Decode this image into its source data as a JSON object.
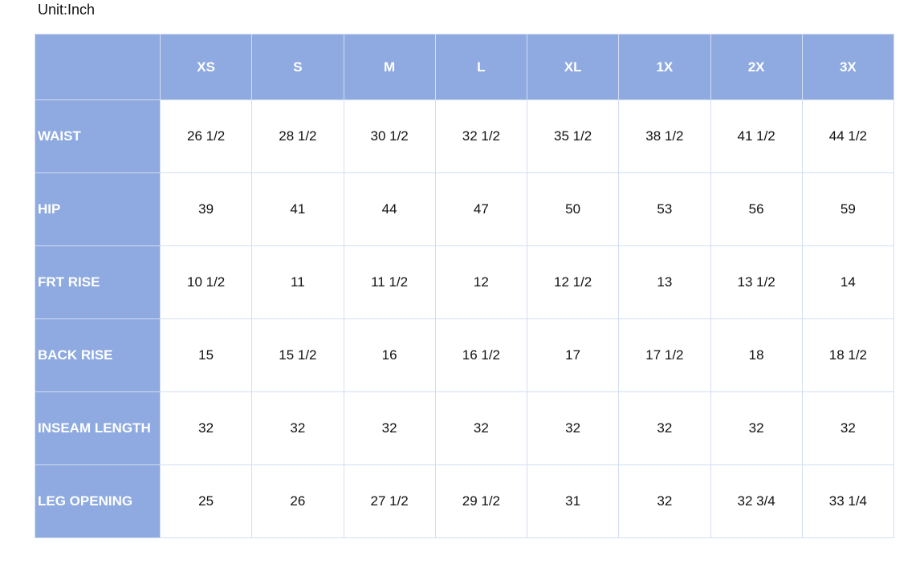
{
  "unit": "Unit:Inch",
  "table": {
    "columns": [
      "XS",
      "S",
      "M",
      "L",
      "XL",
      "1X",
      "2X",
      "3X"
    ],
    "rows": [
      {
        "label": "WAIST",
        "values": [
          "26 1/2",
          "28 1/2",
          "30 1/2",
          "32 1/2",
          "35 1/2",
          "38 1/2",
          "41 1/2",
          "44 1/2"
        ]
      },
      {
        "label": "HIP",
        "values": [
          "39",
          "41",
          "44",
          "47",
          "50",
          "53",
          "56",
          "59"
        ]
      },
      {
        "label": "FRT RISE",
        "values": [
          "10 1/2",
          "11",
          "11 1/2",
          "12",
          "12 1/2",
          "13",
          "13 1/2",
          "14"
        ]
      },
      {
        "label": "BACK RISE",
        "values": [
          "15",
          "15 1/2",
          "16",
          "16 1/2",
          "17",
          "17 1/2",
          "18",
          "18 1/2"
        ]
      },
      {
        "label": "INSEAM LENGTH",
        "values": [
          "32",
          "32",
          "32",
          "32",
          "32",
          "32",
          "32",
          "32"
        ]
      },
      {
        "label": "LEG OPENING",
        "values": [
          "25",
          "26",
          "27 1/2",
          "29 1/2",
          "31",
          "32",
          "32 3/4",
          "33 1/4"
        ]
      }
    ]
  }
}
